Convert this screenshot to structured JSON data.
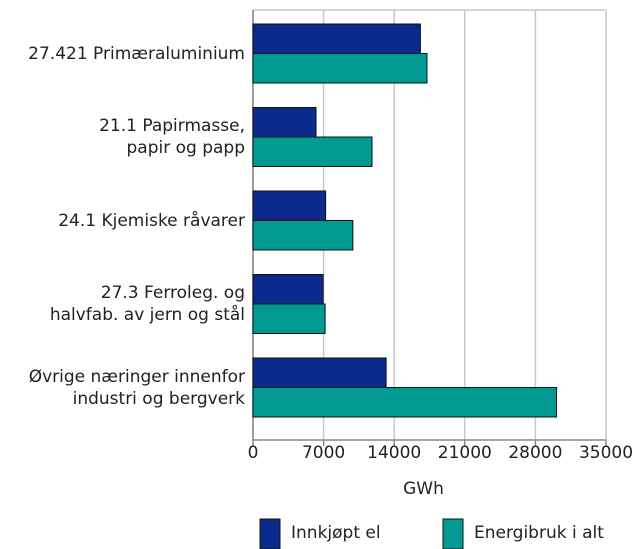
{
  "chart_data": {
    "type": "barh",
    "categories": [
      "27.421 Primæraluminium",
      "21.1 Papirmasse,\npapir og papp",
      "24.1 Kjemiske råvarer",
      "27.3 Ferroleg. og\nhalvfab. av jern og stål",
      "Øvrige næringer innenfor\nindustri og bergverk"
    ],
    "series": [
      {
        "name": "Innkjøpt el",
        "color": "#0a2a8c",
        "values": [
          16600,
          6250,
          7200,
          6950,
          13200
        ]
      },
      {
        "name": "Energibruk i alt",
        "color": "#009a93",
        "values": [
          17250,
          11800,
          9900,
          7150,
          30100
        ]
      }
    ],
    "xlabel": "GWh",
    "xlim": [
      0,
      35000
    ],
    "xticks": [
      0,
      7000,
      14000,
      21000,
      28000,
      35000
    ],
    "grid": true
  }
}
